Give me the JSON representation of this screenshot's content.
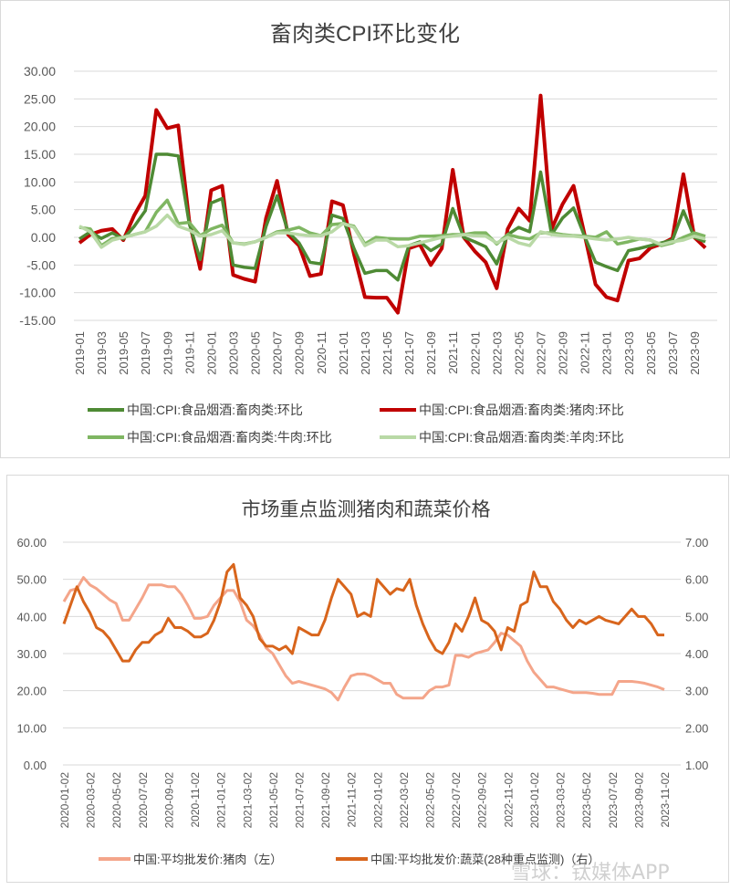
{
  "chart_data": [
    {
      "type": "line",
      "title": "畜肉类CPI环比变化",
      "ylim": [
        -15,
        30
      ],
      "yticks": [
        "30.00",
        "25.00",
        "20.00",
        "15.00",
        "10.00",
        "5.00",
        "0.00",
        "-5.00",
        "-10.00",
        "-15.00"
      ],
      "yvals": [
        30,
        25,
        20,
        15,
        10,
        5,
        0,
        -5,
        -10,
        -15
      ],
      "xlabels": [
        "2019-01",
        "2019-03",
        "2019-05",
        "2019-07",
        "2019-09",
        "2019-11",
        "2020-01",
        "2020-03",
        "2020-05",
        "2020-07",
        "2020-09",
        "2020-11",
        "2021-01",
        "2021-03",
        "2021-05",
        "2021-07",
        "2021-09",
        "2021-11",
        "2022-01",
        "2022-03",
        "2022-05",
        "2022-07",
        "2022-09",
        "2022-11",
        "2023-01",
        "2023-03",
        "2023-05",
        "2023-07",
        "2023-09"
      ],
      "legend": "bottom",
      "grid": true,
      "series": [
        {
          "name": "中国:CPI:食品烟酒:畜肉类:环比",
          "color": "#4e8a34",
          "values": [
            -0.3,
            1,
            -0.2,
            0.8,
            -0.3,
            2,
            4.8,
            15,
            15,
            14.7,
            2.5,
            -4,
            6.2,
            7,
            -5,
            -5.4,
            -5.6,
            2,
            7.5,
            1,
            -1,
            -4.5,
            -4.8,
            4,
            3.4,
            -2,
            -6.5,
            -6,
            -6,
            -7.7,
            -1.5,
            -0.8,
            -2.4,
            -1.2,
            5.2,
            0,
            -0.8,
            -1.7,
            -4.8,
            0.5,
            1.8,
            1,
            11.8,
            0.5,
            3.5,
            5.3,
            0.2,
            -4.5,
            -5.3,
            -6,
            -2.4,
            -2,
            -1.5,
            -1,
            -0.5,
            4.8,
            0,
            -0.8
          ]
        },
        {
          "name": "中国:CPI:食品烟酒:畜肉类:猪肉:环比",
          "color": "#c00000",
          "values": [
            -1,
            0.5,
            1.2,
            1.5,
            -0.5,
            4,
            7.5,
            23,
            19.7,
            20.2,
            3,
            -5.7,
            8.5,
            9.3,
            -6.8,
            -7.5,
            -8,
            3.5,
            10.2,
            0.5,
            -1.5,
            -7,
            -6.6,
            6.5,
            5.8,
            -3,
            -10.8,
            -10.9,
            -10.9,
            -13.6,
            -2,
            -1.3,
            -5,
            -2,
            12.2,
            0,
            -2.5,
            -4.5,
            -9.2,
            1.5,
            5.2,
            3,
            25.6,
            1.5,
            6,
            9.3,
            0.5,
            -8.5,
            -10.8,
            -11.4,
            -4.2,
            -3.8,
            -1.9,
            -1.2,
            -0.2,
            11.4,
            0,
            -1.9
          ]
        },
        {
          "name": "中国:CPI:食品烟酒:畜肉类:牛肉:环比",
          "color": "#7fb662",
          "values": [
            1.8,
            1.5,
            -1.5,
            -0.2,
            0,
            0.5,
            1,
            4.5,
            6.7,
            2.5,
            2.7,
            0.3,
            1.5,
            2.2,
            -1,
            -1.2,
            -0.8,
            0,
            1,
            1.3,
            1.8,
            0.8,
            0.3,
            2.3,
            2.5,
            2,
            -1.2,
            0,
            -0.2,
            -0.3,
            -0.3,
            0.2,
            0.2,
            0.3,
            0.5,
            0.5,
            0.8,
            0.8,
            -1.2,
            0.5,
            0,
            -0.3,
            0.8,
            0.8,
            0.5,
            0.3,
            0.2,
            0,
            1,
            -1.2,
            -0.8,
            -0.3,
            -0.5,
            -1.5,
            -1,
            0,
            0.8,
            0.2
          ]
        },
        {
          "name": "中国:CPI:食品烟酒:畜肉类:羊肉:环比",
          "color": "#b9d9a6",
          "values": [
            2,
            1,
            -1.8,
            -0.5,
            0,
            0.5,
            1,
            2,
            4,
            2,
            1.3,
            0.2,
            0.5,
            1.2,
            -1,
            -1.3,
            -0.8,
            0,
            0.8,
            0.8,
            0.5,
            0.3,
            0.3,
            1,
            2.5,
            1.8,
            -1.5,
            -0.5,
            -0.5,
            -1.7,
            -1.5,
            -1,
            -0.5,
            0,
            0.2,
            0.5,
            0.3,
            0.2,
            -1,
            0,
            -1,
            -1.5,
            1,
            0.5,
            0.3,
            0.2,
            0,
            -0.3,
            -0.5,
            -0.3,
            0,
            -0.3,
            -0.5,
            -1.3,
            -0.8,
            -0.5,
            0.2,
            -0.3
          ]
        }
      ]
    },
    {
      "type": "line",
      "title": "市场重点监测猪肉和蔬菜价格",
      "ylim": [
        0,
        60
      ],
      "y2lim": [
        1,
        7
      ],
      "yticks": [
        "60.00",
        "50.00",
        "40.00",
        "30.00",
        "20.00",
        "10.00",
        "0.00"
      ],
      "yvals": [
        60,
        50,
        40,
        30,
        20,
        10,
        0
      ],
      "y2ticks": [
        "7.00",
        "6.00",
        "5.00",
        "4.00",
        "3.00",
        "2.00",
        "1.00"
      ],
      "y2vals": [
        7,
        6,
        5,
        4,
        3,
        2,
        1
      ],
      "xlabels": [
        "2020-01-02",
        "2020-03-02",
        "2020-05-02",
        "2020-07-02",
        "2020-09-02",
        "2020-11-02",
        "2021-01-02",
        "2021-03-02",
        "2021-05-02",
        "2021-07-02",
        "2021-09-02",
        "2021-11-02",
        "2022-01-02",
        "2022-03-02",
        "2022-05-02",
        "2022-07-02",
        "2022-09-02",
        "2022-11-02",
        "2023-01-02",
        "2023-03-02",
        "2023-05-02",
        "2023-07-02",
        "2023-09-02",
        "2023-11-02"
      ],
      "legend": "bottom",
      "grid": true,
      "x_step": "half-month",
      "series": [
        {
          "name": "中国:平均批发价:猪肉（左）",
          "axis": "left",
          "color": "#f4a58a",
          "values": [
            44,
            47,
            47.5,
            50.5,
            48.5,
            47.5,
            46,
            44.5,
            43.5,
            39,
            39,
            42,
            45,
            48.5,
            48.5,
            48.5,
            48,
            48,
            46,
            43,
            39.5,
            39.5,
            40,
            43,
            45,
            47,
            47,
            44,
            39,
            37.5,
            35,
            31.5,
            30,
            27,
            24,
            22,
            22.5,
            22,
            21.5,
            21,
            20.5,
            19.5,
            17.5,
            21,
            24,
            24.5,
            24.5,
            24,
            23,
            22,
            22,
            19,
            18,
            18,
            18,
            18,
            20,
            21,
            21,
            21.5,
            29.5,
            29.5,
            29,
            30,
            30.5,
            31,
            33,
            35.5,
            35,
            33.5,
            32,
            28,
            25,
            23,
            21,
            21,
            20.5,
            20,
            19.5,
            19.5,
            19.5,
            19.3,
            19,
            19,
            19,
            22.5,
            22.5,
            22.5,
            22.3,
            22,
            21.5,
            21,
            20.3
          ]
        },
        {
          "name": "中国:平均批发价:蔬菜(28种重点监测)（右）",
          "axis": "right",
          "color": "#d8651c",
          "values": [
            4.8,
            5.3,
            5.8,
            5.4,
            5.1,
            4.7,
            4.6,
            4.4,
            4.1,
            3.8,
            3.8,
            4.1,
            4.3,
            4.3,
            4.5,
            4.6,
            4.95,
            4.7,
            4.7,
            4.6,
            4.45,
            4.45,
            4.55,
            4.9,
            5.4,
            6.2,
            6.4,
            5.5,
            5.3,
            5.0,
            4.4,
            4.2,
            4.2,
            4.1,
            4.2,
            4.0,
            4.7,
            4.6,
            4.5,
            4.5,
            4.9,
            5.5,
            6.0,
            5.8,
            5.6,
            5.0,
            5.1,
            5.0,
            6.0,
            5.8,
            5.6,
            5.75,
            5.7,
            6.0,
            5.3,
            4.8,
            4.4,
            4.1,
            4.0,
            4.3,
            4.8,
            4.6,
            5.0,
            5.5,
            4.9,
            4.8,
            4.6,
            4.1,
            4.7,
            4.6,
            5.3,
            5.4,
            6.2,
            5.8,
            5.8,
            5.4,
            5.2,
            4.9,
            4.7,
            4.9,
            4.8,
            4.9,
            5.0,
            4.9,
            4.85,
            4.8,
            5.0,
            5.2,
            5.0,
            5.0,
            4.8,
            4.5,
            4.5
          ]
        }
      ]
    }
  ],
  "watermark": "雪球：钛媒体APP"
}
